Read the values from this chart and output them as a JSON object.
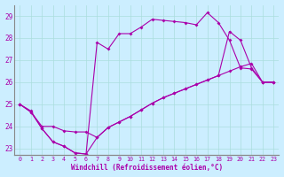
{
  "xlabel": "Windchill (Refroidissement éolien,°C)",
  "background_color": "#cceeff",
  "grid_color": "#aadddd",
  "line_color": "#aa00aa",
  "xlim": [
    -0.5,
    23.5
  ],
  "ylim": [
    22.7,
    29.5
  ],
  "yticks": [
    23,
    24,
    25,
    26,
    27,
    28,
    29
  ],
  "xticks": [
    0,
    1,
    2,
    3,
    4,
    5,
    6,
    7,
    8,
    9,
    10,
    11,
    12,
    13,
    14,
    15,
    16,
    17,
    18,
    19,
    20,
    21,
    22,
    23
  ],
  "line1_x": [
    0,
    1,
    2,
    3,
    4,
    5,
    6,
    7,
    8,
    9,
    10,
    11,
    12,
    13,
    14,
    15,
    16,
    17,
    18,
    19,
    20,
    21,
    22,
    23
  ],
  "line1_y": [
    25.0,
    24.7,
    23.9,
    23.3,
    23.1,
    22.8,
    22.75,
    27.8,
    27.5,
    28.2,
    28.2,
    28.5,
    28.85,
    28.8,
    28.75,
    28.7,
    28.6,
    29.15,
    28.7,
    27.9,
    26.65,
    26.6,
    26.0,
    26.0
  ],
  "line2_x": [
    0,
    1,
    2,
    3,
    4,
    5,
    6,
    7,
    8,
    9,
    10,
    11,
    12,
    13,
    14,
    15,
    16,
    17,
    18,
    19,
    20,
    21,
    22,
    23
  ],
  "line2_y": [
    25.0,
    24.65,
    24.0,
    24.0,
    23.8,
    23.75,
    23.75,
    23.5,
    23.95,
    24.2,
    24.45,
    24.75,
    25.05,
    25.3,
    25.5,
    25.7,
    25.9,
    26.1,
    26.3,
    26.5,
    26.7,
    26.85,
    26.0,
    26.0
  ],
  "line3_x": [
    0,
    1,
    2,
    3,
    4,
    5,
    6,
    7,
    8,
    9,
    10,
    11,
    12,
    13,
    14,
    15,
    16,
    17,
    18,
    19,
    20,
    21,
    22,
    23
  ],
  "line3_y": [
    25.0,
    24.65,
    23.9,
    23.3,
    23.1,
    22.8,
    22.75,
    23.5,
    23.95,
    24.2,
    24.45,
    24.75,
    25.05,
    25.3,
    25.5,
    25.7,
    25.9,
    26.1,
    26.3,
    28.3,
    27.9,
    26.65,
    26.0,
    26.0
  ]
}
